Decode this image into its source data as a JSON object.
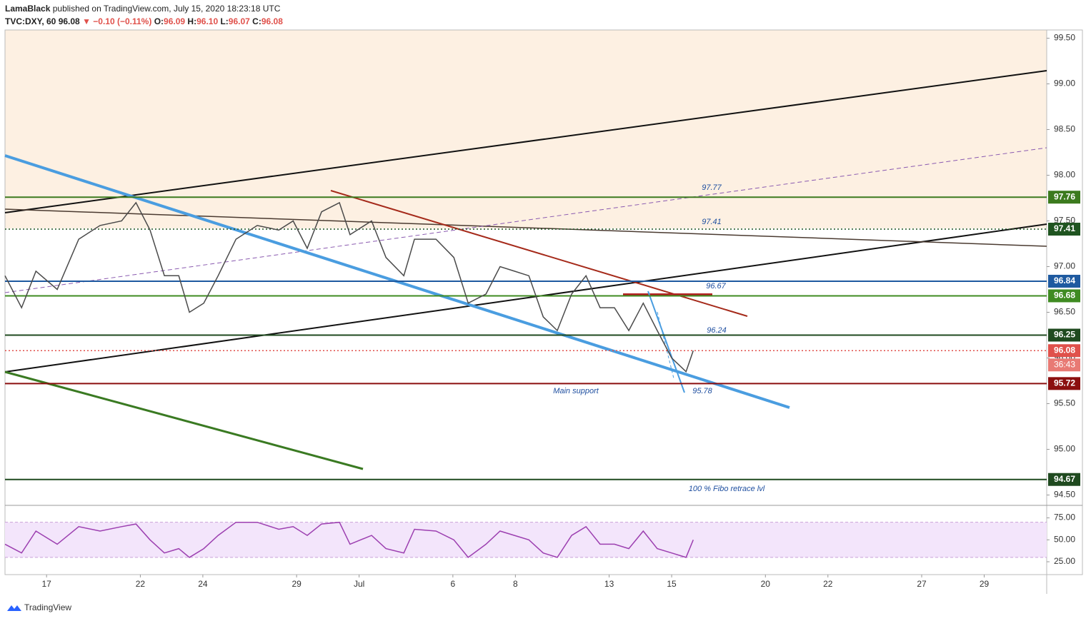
{
  "header": {
    "author": "LamaBlack",
    "published": "published on TradingView.com, July 15, 2020 18:23:18 UTC",
    "symbol": "TVC:DXY, 60",
    "last": "96.08",
    "change": "▼ −0.10 (−0.11%)",
    "o_label": "O:",
    "o": "96.09",
    "h_label": "H:",
    "h": "96.10",
    "l_label": "L:",
    "l": "96.07",
    "c_label": "C:",
    "c": "96.08"
  },
  "footer": {
    "brand": "TradingView"
  },
  "chart_data": [
    {
      "type": "line",
      "color": "#4a4a4a",
      "x": [
        -1.33,
        -0.8,
        -0.34,
        0.34,
        1.03,
        1.71,
        2.4,
        2.86,
        3.31,
        3.77,
        4.23,
        4.57,
        5.03,
        5.49,
        6.06,
        6.74,
        7.43,
        7.89,
        8.34,
        8.8,
        9.37,
        9.71,
        10.4,
        10.86,
        11.43,
        11.77,
        12.46,
        13.03,
        13.49,
        14.06,
        14.51,
        14.97,
        15.43,
        15.89,
        16.34,
        16.8,
        17.26,
        17.71,
        18.17,
        18.63,
        19.09,
        19.54,
        20.0,
        20.46,
        20.69
      ],
      "values": [
        96.9,
        96.55,
        96.95,
        96.75,
        97.3,
        97.45,
        97.5,
        97.7,
        97.4,
        96.9,
        96.9,
        96.5,
        96.6,
        96.9,
        97.3,
        97.45,
        97.4,
        97.5,
        97.2,
        97.6,
        97.7,
        97.35,
        97.5,
        97.1,
        96.9,
        97.3,
        97.3,
        97.1,
        96.6,
        96.7,
        97.0,
        96.95,
        96.9,
        96.45,
        96.3,
        96.7,
        96.9,
        96.55,
        96.55,
        96.3,
        96.6,
        96.3,
        96.0,
        95.85,
        96.08
      ],
      "xlim": [
        -1.33,
        32
      ],
      "xticks": [
        {
          "value": 0,
          "label": "17"
        },
        {
          "value": 3,
          "label": "22"
        },
        {
          "value": 5,
          "label": "24"
        },
        {
          "value": 8,
          "label": "29"
        },
        {
          "value": 10,
          "label": "Jul"
        },
        {
          "value": 13,
          "label": "6"
        },
        {
          "value": 15,
          "label": "8"
        },
        {
          "value": 18,
          "label": "13"
        },
        {
          "value": 20,
          "label": "15"
        },
        {
          "value": 23,
          "label": "20"
        },
        {
          "value": 25,
          "label": "22"
        },
        {
          "value": 28,
          "label": "27"
        },
        {
          "value": 30,
          "label": "29"
        }
      ],
      "ylim": [
        94.41,
        99.59
      ],
      "yticks": [
        {
          "value": 94.5,
          "label": "94.50"
        },
        {
          "value": 95,
          "label": "95.00"
        },
        {
          "value": 95.5,
          "label": "95.50"
        },
        {
          "value": 96,
          "label": "96.00"
        },
        {
          "value": 96.5,
          "label": "96.50"
        },
        {
          "value": 97,
          "label": "97.00"
        },
        {
          "value": 97.5,
          "label": "97.50"
        },
        {
          "value": 98,
          "label": "98.00"
        },
        {
          "value": 98.5,
          "label": "98.50"
        },
        {
          "value": 99,
          "label": "99.00"
        },
        {
          "value": 99.5,
          "label": "99.50"
        }
      ],
      "levels": [
        {
          "value": 97.76,
          "color": "#3c7a1e"
        },
        {
          "value": 97.41,
          "color": "#1f5420",
          "dash": true
        },
        {
          "value": 96.84,
          "color": "#1f5aa0"
        },
        {
          "value": 96.68,
          "color": "#3f8b22"
        },
        {
          "value": 96.25,
          "color": "#1f4a1f"
        },
        {
          "value": 96.08,
          "color": "#e0514b",
          "dash": true
        },
        {
          "value": 95.72,
          "color": "#8b0f0f"
        },
        {
          "value": 94.67,
          "color": "#1f4a1f"
        }
      ],
      "countdown": "36:43",
      "annotations": [
        "97.77",
        "97.41",
        "96.67",
        "96.24",
        "95.78",
        "Main support",
        "100 % Fibo retrace lvl"
      ]
    },
    {
      "type": "line",
      "color": "#9c3fb0",
      "x": [
        -1.33,
        -0.8,
        -0.34,
        0.34,
        1.03,
        1.71,
        2.4,
        2.86,
        3.31,
        3.77,
        4.23,
        4.57,
        5.03,
        5.49,
        6.06,
        6.74,
        7.43,
        7.89,
        8.34,
        8.8,
        9.37,
        9.71,
        10.4,
        10.86,
        11.43,
        11.77,
        12.46,
        13.03,
        13.49,
        14.06,
        14.51,
        14.97,
        15.43,
        15.89,
        16.34,
        16.8,
        17.26,
        17.71,
        18.17,
        18.63,
        19.09,
        19.54,
        20.0,
        20.46,
        20.69
      ],
      "values": [
        45,
        35,
        60,
        45,
        65,
        60,
        65,
        68,
        50,
        35,
        40,
        30,
        40,
        55,
        70,
        70,
        62,
        65,
        55,
        68,
        70,
        45,
        55,
        40,
        35,
        62,
        60,
        50,
        30,
        45,
        60,
        55,
        50,
        35,
        30,
        55,
        65,
        45,
        45,
        40,
        60,
        40,
        35,
        30,
        50
      ],
      "xlim": [
        -1.33,
        32
      ],
      "ylim": [
        12,
        86
      ],
      "band": [
        30,
        70
      ],
      "yticks": [
        {
          "value": 25,
          "label": "25.00"
        },
        {
          "value": 50,
          "label": "50.00"
        },
        {
          "value": 75,
          "label": "75.00"
        }
      ]
    }
  ]
}
